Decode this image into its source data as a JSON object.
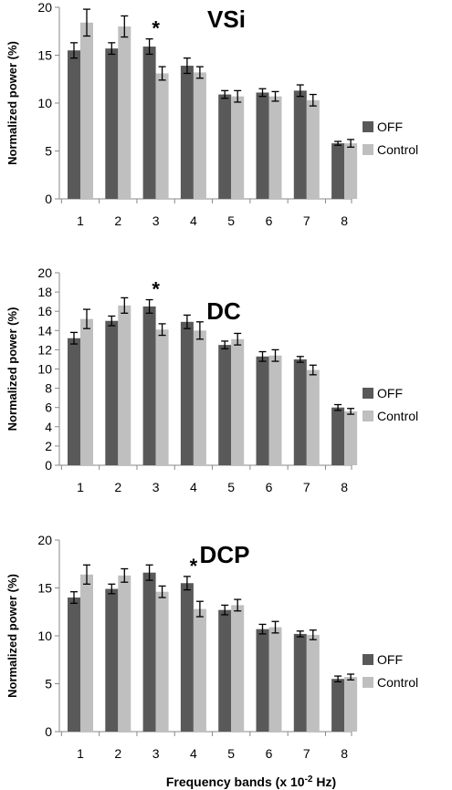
{
  "colors": {
    "off": "#595959",
    "control": "#bfbfbf",
    "axis": "#888888",
    "error": "#000000"
  },
  "xlabel": "Frequency bands (x 10",
  "xlabel_sup": "-2",
  "xlabel_tail": " Hz)",
  "chart_data": [
    {
      "type": "bar",
      "title": "VSi",
      "ylabel": "Normalized power (%)",
      "ylim": [
        0,
        20
      ],
      "yticks": [
        0,
        5,
        10,
        15,
        20
      ],
      "categories": [
        "1",
        "2",
        "3",
        "4",
        "5",
        "6",
        "7",
        "8"
      ],
      "legend_position": "right",
      "annotation": {
        "text": "*",
        "category": "3"
      },
      "series": [
        {
          "name": "OFF",
          "values": [
            15.5,
            15.7,
            15.9,
            13.9,
            10.9,
            11.1,
            11.3,
            5.8
          ],
          "errors": [
            0.8,
            0.6,
            0.8,
            0.8,
            0.4,
            0.4,
            0.6,
            0.2
          ]
        },
        {
          "name": "Control",
          "values": [
            18.4,
            18.0,
            13.1,
            13.2,
            10.7,
            10.7,
            10.3,
            5.8
          ],
          "errors": [
            1.4,
            1.1,
            0.7,
            0.6,
            0.6,
            0.5,
            0.6,
            0.4
          ]
        }
      ]
    },
    {
      "type": "bar",
      "title": "DC",
      "ylabel": "Normalized power (%)",
      "ylim": [
        0,
        20
      ],
      "yticks": [
        0,
        2,
        4,
        6,
        8,
        10,
        12,
        14,
        16,
        18,
        20
      ],
      "categories": [
        "1",
        "2",
        "3",
        "4",
        "5",
        "6",
        "7",
        "8"
      ],
      "legend_position": "right",
      "annotation": {
        "text": "*",
        "category": "3"
      },
      "series": [
        {
          "name": "OFF",
          "values": [
            13.2,
            15.0,
            16.5,
            14.9,
            12.5,
            11.3,
            11.0,
            6.0
          ],
          "errors": [
            0.6,
            0.5,
            0.7,
            0.7,
            0.4,
            0.5,
            0.3,
            0.3
          ]
        },
        {
          "name": "Control",
          "values": [
            15.2,
            16.6,
            14.1,
            14.0,
            13.1,
            11.4,
            9.9,
            5.6
          ],
          "errors": [
            1.0,
            0.8,
            0.6,
            0.9,
            0.6,
            0.6,
            0.5,
            0.3
          ]
        }
      ]
    },
    {
      "type": "bar",
      "title": "DCP",
      "ylabel": "Normalized power (%)",
      "ylim": [
        0,
        20
      ],
      "yticks": [
        0,
        5,
        10,
        15,
        20
      ],
      "categories": [
        "1",
        "2",
        "3",
        "4",
        "5",
        "6",
        "7",
        "8"
      ],
      "legend_position": "right",
      "annotation": {
        "text": "*",
        "category": "4"
      },
      "series": [
        {
          "name": "OFF",
          "values": [
            14.0,
            14.9,
            16.6,
            15.5,
            12.7,
            10.7,
            10.2,
            5.5
          ],
          "errors": [
            0.6,
            0.5,
            0.8,
            0.7,
            0.5,
            0.5,
            0.3,
            0.3
          ]
        },
        {
          "name": "Control",
          "values": [
            16.4,
            16.3,
            14.6,
            12.8,
            13.2,
            10.9,
            10.1,
            5.7
          ],
          "errors": [
            1.0,
            0.7,
            0.6,
            0.8,
            0.6,
            0.6,
            0.5,
            0.3
          ]
        }
      ]
    }
  ]
}
